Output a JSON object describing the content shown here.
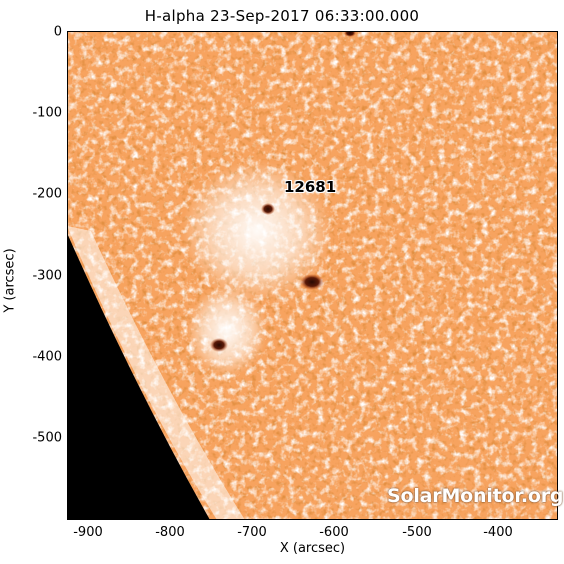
{
  "title": "H-alpha 23-Sep-2017 06:33:00.000",
  "x_axis": {
    "label": "X (arcsec)",
    "ticks": [
      "-900",
      "-800",
      "-700",
      "-600",
      "-500",
      "-400"
    ],
    "range": [
      -925,
      -330
    ]
  },
  "y_axis": {
    "label": "Y (arcsec)",
    "ticks": [
      "0",
      "-100",
      "-200",
      "-300",
      "-400",
      "-500"
    ],
    "range": [
      -595,
      0
    ]
  },
  "region": {
    "label": "12681"
  },
  "watermark": "SolarMonitor.org",
  "colors": {
    "sun_base": "#f7a35f",
    "bright": "#ffffff",
    "dark": "#c0440c",
    "spot": "#3a1005",
    "space": "#000000"
  }
}
